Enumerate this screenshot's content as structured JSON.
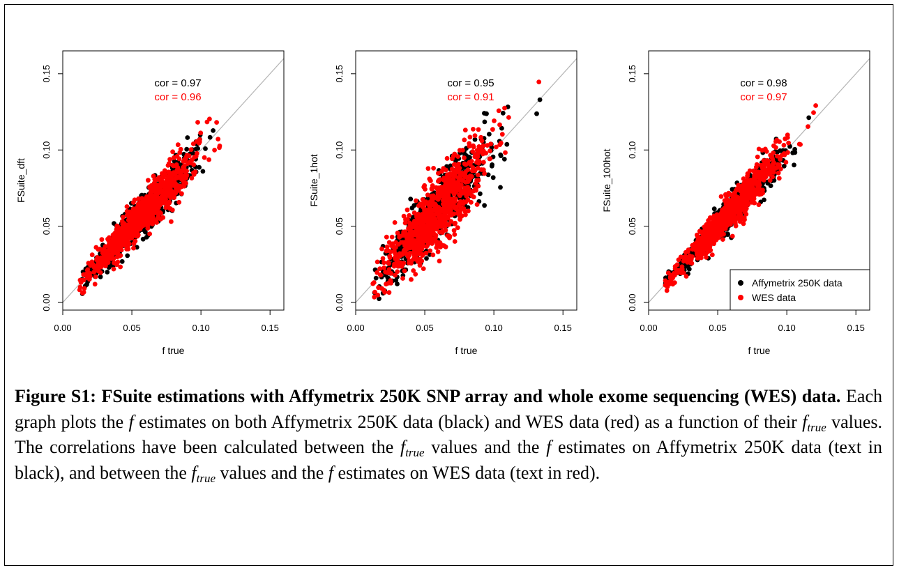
{
  "chart_data": [
    {
      "type": "scatter",
      "xlabel": "f true",
      "ylabel": "FSuite_dft",
      "xlim": [
        0.0,
        0.16
      ],
      "ylim": [
        -0.005,
        0.165
      ],
      "xticks": [
        "0.00",
        "0.05",
        "0.10",
        "0.15"
      ],
      "yticks": [
        "0.00",
        "0.05",
        "0.10",
        "0.15"
      ],
      "reference_line": "y = x",
      "annotations": [
        {
          "text": "cor = 0.97",
          "color": "#000000"
        },
        {
          "text": "cor = 0.96",
          "color": "#ff0000"
        }
      ],
      "series": [
        {
          "color": "#000000",
          "correlation": 0.97,
          "trend": [
            [
              0.01,
              0.01
            ],
            [
              0.15,
              0.15
            ]
          ],
          "x_range": [
            0.012,
            0.15
          ],
          "count": 700,
          "noise_sd": 0.006
        },
        {
          "color": "#ff0000",
          "correlation": 0.96,
          "trend": [
            [
              0.01,
              0.01
            ],
            [
              0.15,
              0.15
            ]
          ],
          "x_range": [
            0.012,
            0.15
          ],
          "count": 800,
          "noise_sd": 0.0065
        }
      ]
    },
    {
      "type": "scatter",
      "xlabel": "f true",
      "ylabel": "FSuite_1hot",
      "xlim": [
        0.0,
        0.16
      ],
      "ylim": [
        -0.005,
        0.165
      ],
      "xticks": [
        "0.00",
        "0.05",
        "0.10",
        "0.15"
      ],
      "yticks": [
        "0.00",
        "0.05",
        "0.10",
        "0.15"
      ],
      "reference_line": "y = x",
      "annotations": [
        {
          "text": "cor = 0.95",
          "color": "#000000"
        },
        {
          "text": "cor = 0.91",
          "color": "#ff0000"
        }
      ],
      "series": [
        {
          "color": "#000000",
          "correlation": 0.95,
          "trend": [
            [
              0.01,
              0.01
            ],
            [
              0.15,
              0.155
            ]
          ],
          "x_range": [
            0.012,
            0.152
          ],
          "count": 700,
          "noise_sd": 0.009
        },
        {
          "color": "#ff0000",
          "correlation": 0.91,
          "trend": [
            [
              0.01,
              0.01
            ],
            [
              0.15,
              0.15
            ]
          ],
          "x_range": [
            0.012,
            0.152
          ],
          "count": 800,
          "noise_sd": 0.011
        }
      ]
    },
    {
      "type": "scatter",
      "xlabel": "f true",
      "ylabel": "FSuite_100hot",
      "xlim": [
        0.0,
        0.16
      ],
      "ylim": [
        -0.005,
        0.165
      ],
      "xticks": [
        "0.00",
        "0.05",
        "0.10",
        "0.15"
      ],
      "yticks": [
        "0.00",
        "0.05",
        "0.10",
        "0.15"
      ],
      "reference_line": "y = x",
      "legend": {
        "position": "bottom-right",
        "entries": [
          {
            "label": "Affymetrix 250K data",
            "color": "#000000"
          },
          {
            "label": "WES data",
            "color": "#ff0000"
          }
        ]
      },
      "annotations": [
        {
          "text": "cor = 0.98",
          "color": "#000000"
        },
        {
          "text": "cor = 0.97",
          "color": "#ff0000"
        }
      ],
      "series": [
        {
          "color": "#000000",
          "correlation": 0.98,
          "trend": [
            [
              0.01,
              0.01
            ],
            [
              0.15,
              0.15
            ]
          ],
          "x_range": [
            0.012,
            0.152
          ],
          "count": 700,
          "noise_sd": 0.0045
        },
        {
          "color": "#ff0000",
          "correlation": 0.97,
          "trend": [
            [
              0.01,
              0.01
            ],
            [
              0.15,
              0.15
            ]
          ],
          "x_range": [
            0.012,
            0.152
          ],
          "count": 800,
          "noise_sd": 0.005
        }
      ]
    }
  ],
  "caption": {
    "title": "Figure S1: FSuite estimations with Affymetrix 250K SNP array and whole exome sequencing (WES) data.",
    "p1": " Each graph plots the ",
    "f": "f",
    "p2": " estimates on both Affymetrix 250K data (black) and WES data (red) as a function of their ",
    "f_true_base": "f",
    "f_true_sub": "true",
    "p3": " values. The correlations have been calculated between the ",
    "p4": " values and the ",
    "p5": " estimates on Affymetrix 250K data (text in black), and between the ",
    "p6": " values and the ",
    "p7": " estimates on WES data (text in red)."
  }
}
